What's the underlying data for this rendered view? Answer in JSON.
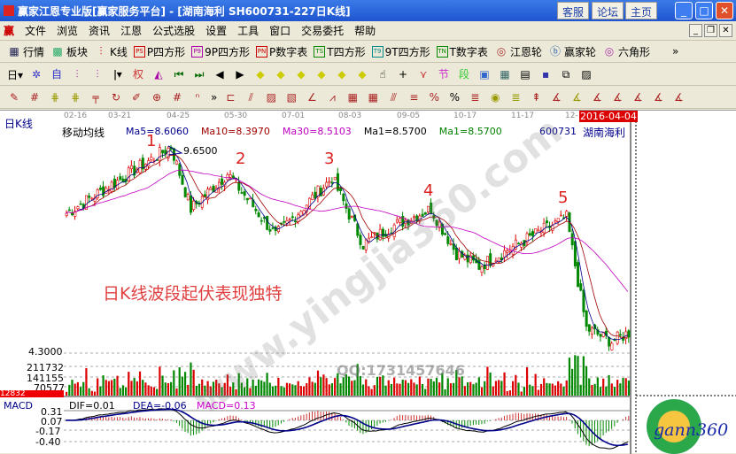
{
  "window": {
    "title": "赢家江恩专业版[赢家服务平台] - [湖南海利  SH600731-227日K线]",
    "buttons": [
      "客服",
      "论坛",
      "主页"
    ]
  },
  "menu": {
    "logo": "赢",
    "items": [
      "文件",
      "浏览",
      "资讯",
      "江恩",
      "公式选股",
      "设置",
      "工具",
      "窗口",
      "交易委托",
      "帮助"
    ]
  },
  "toolbar1": [
    {
      "icon": "grid-icon",
      "label": "行情"
    },
    {
      "icon": "blocks-icon",
      "label": "板块"
    },
    {
      "icon": "candles-icon",
      "label": "K线"
    },
    {
      "icon": "PS",
      "label": "P四方形"
    },
    {
      "icon": "P9",
      "label": "9P四方形"
    },
    {
      "icon": "PN",
      "label": "P数字表"
    },
    {
      "icon": "TS",
      "label": "T四方形"
    },
    {
      "icon": "T9",
      "label": "9T四方形"
    },
    {
      "icon": "TN",
      "label": "T数字表"
    },
    {
      "icon": "wheel-icon",
      "label": "江恩轮"
    },
    {
      "icon": "Big",
      "label": "赢家轮"
    },
    {
      "icon": "hexagon-icon",
      "label": "六角形"
    }
  ],
  "toolbar2": {
    "period": "日"
  },
  "chart": {
    "panel_title": "日K线",
    "indicator": "移动均线",
    "ma": [
      {
        "label": "Ma5=8.6060",
        "color": "#00008b"
      },
      {
        "label": "Ma10=8.3970",
        "color": "#a00000"
      },
      {
        "label": "Ma30=8.5103",
        "color": "#c000c0"
      },
      {
        "label": "Ma1=8.5700",
        "color": "#000000"
      },
      {
        "label": "Ma1=8.5700",
        "color": "#008000"
      }
    ],
    "code": "600731",
    "name": "湖南海利",
    "dates": [
      "02-16",
      "03-21",
      "04-25",
      "05-30",
      "07-01",
      "08-03",
      "09-05",
      "10-17",
      "11-17",
      "12-"
    ],
    "current_date": "2016-04-04",
    "high_label": "9.6500",
    "low_label": "4.3000",
    "wave_labels": [
      "1",
      "2",
      "3",
      "4",
      "5"
    ],
    "annotation": "日K线波段起伏表现独特",
    "price_waypoints": [
      [
        0,
        7.93
      ],
      [
        37,
        9.65
      ],
      [
        44,
        8.04
      ],
      [
        57,
        8.96
      ],
      [
        74,
        7.35
      ],
      [
        94,
        8.85
      ],
      [
        105,
        7.12
      ],
      [
        115,
        7.58
      ],
      [
        129,
        8.04
      ],
      [
        138,
        6.89
      ],
      [
        146,
        6.55
      ],
      [
        168,
        7.47
      ],
      [
        177,
        7.81
      ],
      [
        184,
        4.94
      ],
      [
        193,
        4.6
      ],
      [
        199,
        4.83
      ]
    ],
    "volume_ticks": [
      "211732",
      "141155",
      "70577"
    ],
    "volume_current": "12832",
    "watermark_qq": "QQ:1731457646",
    "watermark_site": "www.yingjia360.com",
    "macd": {
      "title": "MACD",
      "dif": "DIF=0.01",
      "dea": "DEA=-0.06",
      "macd": "MACD=0.13",
      "ticks": [
        "0.31",
        "0.07",
        "-0.17",
        "-0.40"
      ]
    },
    "logo": "gann360"
  }
}
